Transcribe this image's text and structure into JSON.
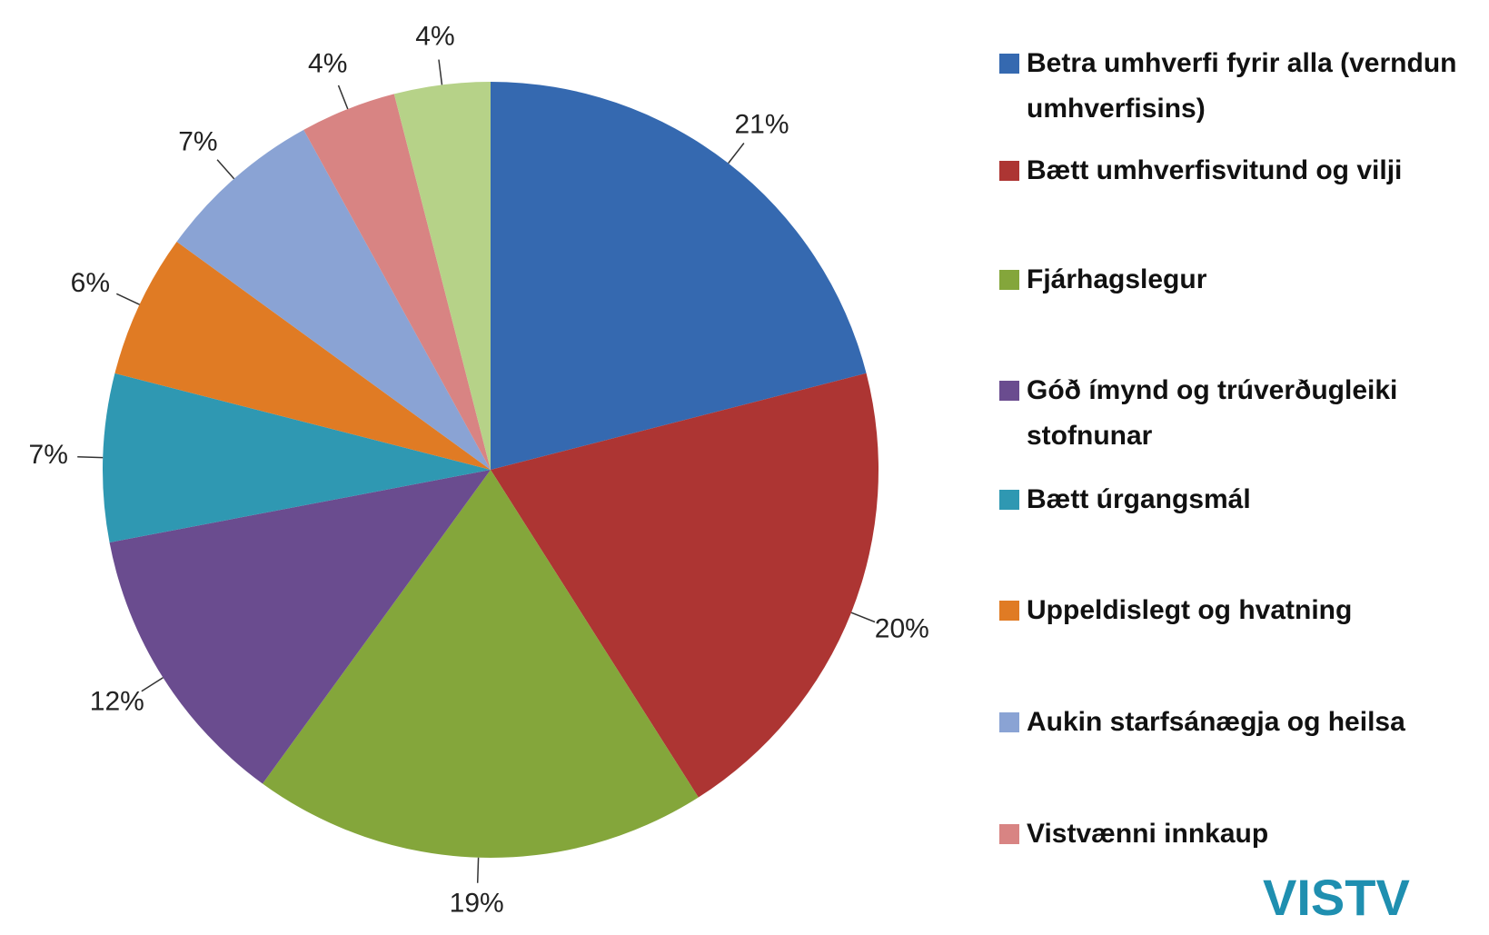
{
  "chart_data": {
    "type": "pie",
    "categories": [
      "Betra umhverfi fyrir alla (verndun umhverfisins)",
      "Bætt umhverfisvitund og vilji",
      "Fjárhagslegur",
      "Góð ímynd og trúverðugleiki stofnunar",
      "Bætt úrgangsmál",
      "Uppeldislegt og hvatning",
      "Aukin starfsánægja og heilsa",
      "Vistvænni innkaup",
      null
    ],
    "values": [
      21,
      20,
      19,
      12,
      7,
      6,
      7,
      4,
      4
    ],
    "value_labels": [
      "21%",
      "20%",
      "19%",
      "12%",
      "7%",
      "6%",
      "7%",
      "4%",
      "4%"
    ],
    "colors": [
      "#3569b0",
      "#ad3533",
      "#84a63b",
      "#6a4c8f",
      "#2f98b2",
      "#e07b24",
      "#8aa3d4",
      "#d88483",
      "#b6d288"
    ],
    "legend": "right",
    "logo": "VISTV"
  }
}
